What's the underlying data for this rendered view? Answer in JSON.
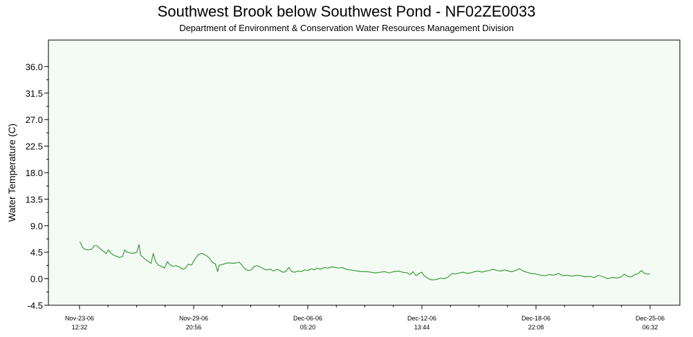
{
  "chart_data": {
    "type": "line",
    "title": "Southwest Brook below Southwest Pond - NF02ZE0033",
    "subtitle": "Department of Environment & Conservation Water Resources Management Division",
    "ylabel": "Water Temperature (C)",
    "xlabel": "",
    "ylim": [
      -4.5,
      40.5
    ],
    "yticks": [
      "-4.5",
      "0.0",
      "4.5",
      "9.0",
      "13.5",
      "18.0",
      "22.5",
      "27.0",
      "31.5",
      "36.0"
    ],
    "xlim": [
      "2006-11-23 12:32",
      "2006-12-25 06:32"
    ],
    "xticks": [
      {
        "at": "2006-11-23 12:32",
        "line1": "Nov-23-06",
        "line2": "12:32"
      },
      {
        "at": "2006-11-29 20:56",
        "line1": "Nov-29-06",
        "line2": "20:56"
      },
      {
        "at": "2006-12-06 05:20",
        "line1": "Dec-06-06",
        "line2": "05:20"
      },
      {
        "at": "2006-12-12 13:44",
        "line1": "Dec-12-06",
        "line2": "13:44"
      },
      {
        "at": "2006-12-18 22:08",
        "line1": "Dec-18-06",
        "line2": "22:08"
      },
      {
        "at": "2006-12-25 06:32",
        "line1": "Dec-25-06",
        "line2": "06:32"
      }
    ],
    "grid": false,
    "series": [
      {
        "color": "#3a9a3a",
        "points": [
          [
            "2006-11-23 12:32",
            6.2
          ],
          [
            "2006-11-23 14:00",
            6.1
          ],
          [
            "2006-11-23 16:00",
            5.4
          ],
          [
            "2006-11-23 19:00",
            5.0
          ],
          [
            "2006-11-24 00:00",
            4.9
          ],
          [
            "2006-11-24 05:00",
            5.0
          ],
          [
            "2006-11-24 08:00",
            5.6
          ],
          [
            "2006-11-24 12:00",
            5.6
          ],
          [
            "2006-11-24 16:00",
            5.1
          ],
          [
            "2006-11-24 20:00",
            4.7
          ],
          [
            "2006-11-25 00:00",
            4.3
          ],
          [
            "2006-11-25 03:00",
            4.9
          ],
          [
            "2006-11-25 06:00",
            4.4
          ],
          [
            "2006-11-25 10:00",
            4.0
          ],
          [
            "2006-11-25 14:00",
            3.8
          ],
          [
            "2006-11-25 18:00",
            3.6
          ],
          [
            "2006-11-25 22:00",
            3.8
          ],
          [
            "2006-11-26 01:00",
            4.9
          ],
          [
            "2006-11-26 04:00",
            4.5
          ],
          [
            "2006-11-26 08:00",
            4.4
          ],
          [
            "2006-11-26 12:00",
            4.3
          ],
          [
            "2006-11-26 17:00",
            4.5
          ],
          [
            "2006-11-26 20:00",
            5.8
          ],
          [
            "2006-11-26 22:00",
            4.0
          ],
          [
            "2006-11-27 01:00",
            3.7
          ],
          [
            "2006-11-27 05:00",
            3.2
          ],
          [
            "2006-11-27 09:00",
            2.9
          ],
          [
            "2006-11-27 12:00",
            2.6
          ],
          [
            "2006-11-27 15:00",
            4.3
          ],
          [
            "2006-11-27 18:00",
            2.9
          ],
          [
            "2006-11-27 22:00",
            2.3
          ],
          [
            "2006-11-28 02:00",
            2.1
          ],
          [
            "2006-11-28 06:00",
            1.8
          ],
          [
            "2006-11-28 10:00",
            2.9
          ],
          [
            "2006-11-28 13:00",
            2.4
          ],
          [
            "2006-11-28 17:00",
            2.1
          ],
          [
            "2006-11-28 21:00",
            2.2
          ],
          [
            "2006-11-29 02:00",
            2.0
          ],
          [
            "2006-11-29 06:00",
            1.6
          ],
          [
            "2006-11-29 10:00",
            1.8
          ],
          [
            "2006-11-29 14:00",
            2.5
          ],
          [
            "2006-11-29 18:00",
            2.3
          ],
          [
            "2006-11-29 22:00",
            3.2
          ],
          [
            "2006-11-30 03:00",
            4.1
          ],
          [
            "2006-11-30 08:00",
            4.3
          ],
          [
            "2006-11-30 13:00",
            4.0
          ],
          [
            "2006-11-30 18:00",
            3.5
          ],
          [
            "2006-11-30 22:00",
            2.8
          ],
          [
            "2006-12-01 02:00",
            2.5
          ],
          [
            "2006-12-01 05:00",
            1.2
          ],
          [
            "2006-12-01 07:00",
            2.3
          ],
          [
            "2006-12-01 11:00",
            2.4
          ],
          [
            "2006-12-01 16:00",
            2.6
          ],
          [
            "2006-12-01 21:00",
            2.7
          ],
          [
            "2006-12-02 02:00",
            2.6
          ],
          [
            "2006-12-02 06:00",
            2.7
          ],
          [
            "2006-12-02 10:00",
            2.8
          ],
          [
            "2006-12-02 14:00",
            2.2
          ],
          [
            "2006-12-02 18:00",
            1.6
          ],
          [
            "2006-12-02 22:00",
            1.4
          ],
          [
            "2006-12-03 02:00",
            1.5
          ],
          [
            "2006-12-03 06:00",
            2.1
          ],
          [
            "2006-12-03 10:00",
            2.2
          ],
          [
            "2006-12-03 14:00",
            2.0
          ],
          [
            "2006-12-03 18:00",
            1.7
          ],
          [
            "2006-12-03 22:00",
            1.5
          ],
          [
            "2006-12-04 03:00",
            1.6
          ],
          [
            "2006-12-04 08:00",
            1.3
          ],
          [
            "2006-12-04 12:00",
            1.6
          ],
          [
            "2006-12-04 16:00",
            1.4
          ],
          [
            "2006-12-04 20:00",
            1.1
          ],
          [
            "2006-12-05 00:00",
            1.2
          ],
          [
            "2006-12-05 04:00",
            1.9
          ],
          [
            "2006-12-05 08:00",
            1.2
          ],
          [
            "2006-12-05 12:00",
            1.1
          ],
          [
            "2006-12-05 16:00",
            1.3
          ],
          [
            "2006-12-05 20:00",
            1.2
          ],
          [
            "2006-12-06 01:00",
            1.5
          ],
          [
            "2006-12-06 06:00",
            1.4
          ],
          [
            "2006-12-06 10:00",
            1.7
          ],
          [
            "2006-12-06 14:00",
            1.5
          ],
          [
            "2006-12-06 18:00",
            1.8
          ],
          [
            "2006-12-06 22:00",
            1.6
          ],
          [
            "2006-12-07 03:00",
            1.9
          ],
          [
            "2006-12-07 08:00",
            1.8
          ],
          [
            "2006-12-07 13:00",
            2.0
          ],
          [
            "2006-12-07 18:00",
            1.9
          ],
          [
            "2006-12-07 23:00",
            1.8
          ],
          [
            "2006-12-08 04:00",
            1.9
          ],
          [
            "2006-12-08 09:00",
            1.6
          ],
          [
            "2006-12-08 14:00",
            1.5
          ],
          [
            "2006-12-08 19:00",
            1.4
          ],
          [
            "2006-12-09 00:00",
            1.3
          ],
          [
            "2006-12-09 06:00",
            1.2
          ],
          [
            "2006-12-09 12:00",
            1.2
          ],
          [
            "2006-12-09 18:00",
            1.1
          ],
          [
            "2006-12-10 00:00",
            1.0
          ],
          [
            "2006-12-10 06:00",
            1.1
          ],
          [
            "2006-12-10 12:00",
            1.2
          ],
          [
            "2006-12-10 18:00",
            1.0
          ],
          [
            "2006-12-11 00:00",
            1.2
          ],
          [
            "2006-12-11 06:00",
            1.3
          ],
          [
            "2006-12-11 12:00",
            1.1
          ],
          [
            "2006-12-11 18:00",
            1.0
          ],
          [
            "2006-12-11 22:00",
            0.7
          ],
          [
            "2006-12-12 02:00",
            1.2
          ],
          [
            "2006-12-12 06:00",
            0.5
          ],
          [
            "2006-12-12 10:00",
            0.9
          ],
          [
            "2006-12-12 13:44",
            1.1
          ],
          [
            "2006-12-12 16:00",
            0.6
          ],
          [
            "2006-12-12 20:00",
            0.2
          ],
          [
            "2006-12-13 00:00",
            -0.1
          ],
          [
            "2006-12-13 05:00",
            -0.2
          ],
          [
            "2006-12-13 10:00",
            -0.1
          ],
          [
            "2006-12-13 15:00",
            0.1
          ],
          [
            "2006-12-13 20:00",
            0.0
          ],
          [
            "2006-12-14 01:00",
            0.3
          ],
          [
            "2006-12-14 06:00",
            0.9
          ],
          [
            "2006-12-14 11:00",
            0.8
          ],
          [
            "2006-12-14 16:00",
            1.0
          ],
          [
            "2006-12-14 21:00",
            1.1
          ],
          [
            "2006-12-15 02:00",
            0.9
          ],
          [
            "2006-12-15 07:00",
            1.0
          ],
          [
            "2006-12-15 12:00",
            1.2
          ],
          [
            "2006-12-15 17:00",
            1.3
          ],
          [
            "2006-12-15 22:00",
            1.1
          ],
          [
            "2006-12-16 03:00",
            1.3
          ],
          [
            "2006-12-16 08:00",
            1.4
          ],
          [
            "2006-12-16 13:00",
            1.6
          ],
          [
            "2006-12-16 18:00",
            1.4
          ],
          [
            "2006-12-16 23:00",
            1.3
          ],
          [
            "2006-12-17 04:00",
            1.5
          ],
          [
            "2006-12-17 09:00",
            1.3
          ],
          [
            "2006-12-17 14:00",
            1.2
          ],
          [
            "2006-12-17 19:00",
            1.4
          ],
          [
            "2006-12-18 00:00",
            1.7
          ],
          [
            "2006-12-18 05:00",
            1.3
          ],
          [
            "2006-12-18 10:00",
            1.1
          ],
          [
            "2006-12-18 15:00",
            0.9
          ],
          [
            "2006-12-18 22:08",
            0.8
          ],
          [
            "2006-12-19 04:00",
            0.6
          ],
          [
            "2006-12-19 10:00",
            0.5
          ],
          [
            "2006-12-19 16:00",
            0.7
          ],
          [
            "2006-12-19 22:00",
            0.6
          ],
          [
            "2006-12-20 04:00",
            0.9
          ],
          [
            "2006-12-20 10:00",
            0.5
          ],
          [
            "2006-12-20 16:00",
            0.6
          ],
          [
            "2006-12-20 22:00",
            0.4
          ],
          [
            "2006-12-21 04:00",
            0.6
          ],
          [
            "2006-12-21 10:00",
            0.5
          ],
          [
            "2006-12-21 16:00",
            0.3
          ],
          [
            "2006-12-21 22:00",
            0.4
          ],
          [
            "2006-12-22 04:00",
            0.2
          ],
          [
            "2006-12-22 10:00",
            0.6
          ],
          [
            "2006-12-22 16:00",
            0.3
          ],
          [
            "2006-12-22 22:00",
            0.0
          ],
          [
            "2006-12-23 04:00",
            0.2
          ],
          [
            "2006-12-23 10:00",
            0.1
          ],
          [
            "2006-12-23 16:00",
            0.3
          ],
          [
            "2006-12-23 20:00",
            0.8
          ],
          [
            "2006-12-24 00:00",
            0.4
          ],
          [
            "2006-12-24 05:00",
            0.3
          ],
          [
            "2006-12-24 10:00",
            0.7
          ],
          [
            "2006-12-24 15:00",
            0.9
          ],
          [
            "2006-12-24 19:00",
            1.4
          ],
          [
            "2006-12-24 23:00",
            0.9
          ],
          [
            "2006-12-25 03:00",
            0.8
          ],
          [
            "2006-12-25 06:32",
            0.8
          ]
        ]
      }
    ]
  }
}
